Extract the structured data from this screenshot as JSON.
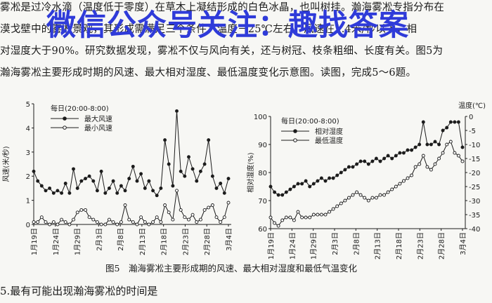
{
  "paragraph": [
    "雾凇是过冷水滴（温度低于零度）在草木上凝结形成的白色冰晶，也叫树挂。瀚海雾凇专指分布在",
    "漠戈壁中的雾凇景观，其形成需满足三个条件：温度－25℃左右，风速在1.4米/秒以下，相",
    "对湿度大于90%。研究数据发现，雾凇不仅与风向有关，还与树冠、枝条粗细、长度有关。图5为",
    "瀚海雾凇主要形成时期的风速、最大相对湿度、最低温度变化示意图。读图，完成5～6题。"
  ],
  "watermark": "微信公众号关注：趣找答案",
  "caption": "图5　瀚海雾凇主要形成期的风速、最大相对湿度和最低气温变化",
  "question": "5.最有可能出现瀚海雾凇的时间是",
  "colors": {
    "ink": "#1c1c1c",
    "watermark": "#2f3bd9",
    "background": "#f7f7f4"
  },
  "chart_data": [
    {
      "type": "line",
      "note": "每日(20:00-8:00)",
      "ylabel": "风速(米/秒)",
      "ylim": [
        0,
        5
      ],
      "yticks": [
        "0",
        "1",
        "2",
        "3",
        "4",
        "5"
      ],
      "x_labels": [
        "1月19日",
        "1月24日",
        "1月29日",
        "2月3日",
        "2月8日",
        "2月13日",
        "2月18日",
        "2月23日",
        "2月28日",
        "3月4日"
      ],
      "legend": "top-left",
      "series": [
        {
          "name": "最大风速",
          "marker": "filled",
          "values": [
            2.2,
            1.8,
            1.6,
            1.4,
            1.5,
            1.3,
            1.4,
            1.3,
            1.7,
            1.3,
            2.3,
            1.5,
            1.8,
            1.9,
            2.0,
            1.8,
            1.4,
            2.2,
            1.3,
            1.5,
            1.8,
            1.3,
            1.6,
            1.4,
            1.9,
            2.4,
            1.8,
            2.1,
            1.5,
            1.8,
            1.4,
            1.2,
            1.5,
            3.5,
            2.5,
            1.6,
            4.7,
            2.2,
            2.0,
            2.8,
            2.3,
            1.8,
            2.2,
            2.5,
            3.5,
            2.0,
            1.5,
            1.7,
            1.3,
            1.9
          ]
        },
        {
          "name": "最小风速",
          "marker": "open",
          "values": [
            0.1,
            0.1,
            0.3,
            0.1,
            0.0,
            0.1,
            0.0,
            0.2,
            0.1,
            0.0,
            0.2,
            0.5,
            0.6,
            0.6,
            0.3,
            0.2,
            0.1,
            0.0,
            0.0,
            0.2,
            0.1,
            0.0,
            0.1,
            0.8,
            0.2,
            0.1,
            0.0,
            0.3,
            0.1,
            0.0,
            0.1,
            0.3,
            0.1,
            0.8,
            0.5,
            0.2,
            1.4,
            0.6,
            0.3,
            0.2,
            0.4,
            0.1,
            0.2,
            0.6,
            0.7,
            0.8,
            0.3,
            0.1,
            0.3,
            0.9
          ]
        }
      ]
    },
    {
      "type": "line",
      "note": "每日(20:00-8:00)",
      "ylabel": "相对湿度(%)",
      "ylim": [
        60,
        100
      ],
      "yticks": [
        "60",
        "70",
        "80",
        "90",
        "100"
      ],
      "y2label": "温度(℃)",
      "y2lim": [
        -40,
        0
      ],
      "y2ticks": [
        "-40",
        "-35",
        "-30",
        "-25",
        "-20",
        "-15",
        "-10",
        "-5",
        "0"
      ],
      "x_labels": [
        "1月19日",
        "1月24日",
        "1月29日",
        "2月3日",
        "2月8日",
        "2月13日",
        "2月18日",
        "2月23日",
        "2月28日",
        "3月4日"
      ],
      "legend": "top-left",
      "series": [
        {
          "name": "相对湿度",
          "axis": "left",
          "marker": "filled",
          "values": [
            75,
            73,
            72,
            72,
            73,
            74,
            75,
            76,
            76,
            77,
            75,
            76,
            77,
            78,
            77,
            78,
            78,
            79,
            80,
            81,
            82,
            82,
            83,
            84,
            84,
            83,
            84,
            85,
            84,
            85,
            86,
            85,
            86,
            87,
            87,
            88,
            88,
            89,
            90,
            98,
            90,
            90,
            91,
            90,
            95,
            96,
            98,
            98,
            98,
            89
          ]
        },
        {
          "name": "最低温度",
          "axis": "right",
          "marker": "open",
          "values": [
            -36,
            -38,
            -39,
            -37,
            -36,
            -36,
            -37,
            -34,
            -36,
            -36,
            -36,
            -35,
            -35,
            -35,
            -35,
            -34,
            -33,
            -32,
            -31,
            -30,
            -29,
            -28,
            -27,
            -28,
            -29,
            -30,
            -29,
            -29,
            -28,
            -28,
            -27,
            -26,
            -25,
            -24,
            -23,
            -22,
            -21,
            -18,
            -17,
            -14,
            -18,
            -19,
            -17,
            -15,
            -13,
            -10,
            -9,
            -13,
            -14,
            -16
          ]
        }
      ]
    }
  ]
}
